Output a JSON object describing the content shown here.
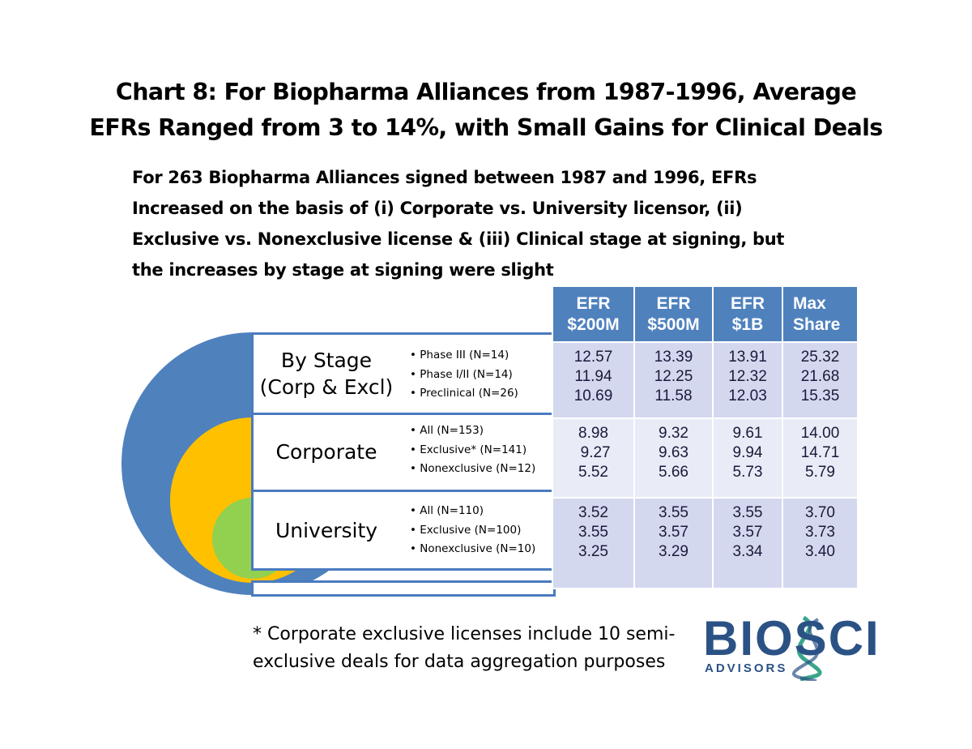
{
  "title": {
    "line1": "Chart 8:  For Biopharma Alliances from 1987-1996,  Average",
    "line2": "EFRs Ranged from 3 to 14%, with Small Gains for Clinical Deals"
  },
  "subtitle": {
    "line1": "For 263 Biopharma Alliances signed between 1987 and 1996, EFRs",
    "line2": "Increased on the basis of (i) Corporate vs. University licensor, (ii)",
    "line3": "Exclusive vs. Nonexclusive license & (iii) Clinical stage at signing, but",
    "line4": "the increases by stage at signing were slight"
  },
  "colors": {
    "outer_ring": "#4f81bd",
    "middle_ring": "#ffc000",
    "inner_ring": "#92d050",
    "header": "#4f81bd"
  },
  "groups": [
    {
      "label_line1": "By Stage",
      "label_line2": "(Corp & Excl)",
      "bullets": [
        "Phase III (N=14)",
        "Phase I/II (N=14)",
        "Preclinical (N=26)"
      ]
    },
    {
      "label_line1": "Corporate",
      "bullets": [
        "All (N=153)",
        "Exclusive* (N=141)",
        "Nonexclusive (N=12)"
      ]
    },
    {
      "label_line1": "University",
      "bullets": [
        "All (N=110)",
        "Exclusive (N=100)",
        "Nonexclusive (N=10)"
      ]
    }
  ],
  "table": {
    "headers": [
      {
        "line1": "EFR",
        "line2": "$200M"
      },
      {
        "line1": "EFR",
        "line2": "$500M"
      },
      {
        "line1": "EFR",
        "line2": "$1B"
      },
      {
        "line1": "Max",
        "line2": "Share"
      }
    ],
    "rows": [
      [
        [
          "12.57",
          "11.94",
          "10.69"
        ],
        [
          "13.39",
          "12.25",
          "11.58"
        ],
        [
          "13.91",
          "12.32",
          "12.03"
        ],
        [
          "25.32",
          "21.68",
          "15.35"
        ]
      ],
      [
        [
          "8.98",
          " 9.27",
          "5.52"
        ],
        [
          "9.32",
          "9.63",
          "5.66"
        ],
        [
          "9.61",
          "9.94",
          "5.73"
        ],
        [
          "14.00",
          "14.71",
          "5.79"
        ]
      ],
      [
        [
          "3.52",
          "3.55",
          "3.25"
        ],
        [
          "3.55",
          "3.57",
          "3.29"
        ],
        [
          "3.55",
          "3.57",
          "3.34"
        ],
        [
          "3.70",
          "3.73",
          "3.40"
        ]
      ]
    ]
  },
  "footnote": {
    "line1": "* Corporate exclusive licenses include 10 semi-",
    "line2": "exclusive deals for data aggregation purposes"
  },
  "logo": {
    "main": "BIOSCI",
    "sub": "ADVISORS"
  }
}
